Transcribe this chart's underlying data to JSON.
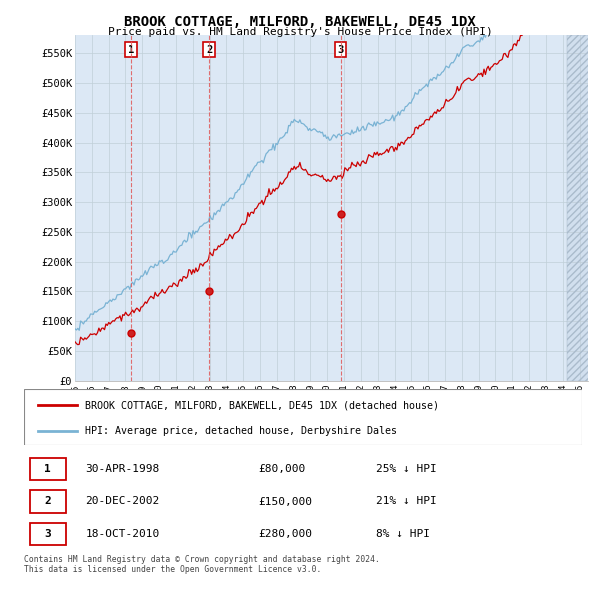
{
  "title": "BROOK COTTAGE, MILFORD, BAKEWELL, DE45 1DX",
  "subtitle": "Price paid vs. HM Land Registry's House Price Index (HPI)",
  "ylabel_ticks": [
    "£0",
    "£50K",
    "£100K",
    "£150K",
    "£200K",
    "£250K",
    "£300K",
    "£350K",
    "£400K",
    "£450K",
    "£500K",
    "£550K"
  ],
  "ytick_values": [
    0,
    50000,
    100000,
    150000,
    200000,
    250000,
    300000,
    350000,
    400000,
    450000,
    500000,
    550000
  ],
  "ylim": [
    0,
    580000
  ],
  "xlim_start": 1995.0,
  "xlim_end": 2025.5,
  "sale_dates": [
    1998.33,
    2002.97,
    2010.79
  ],
  "sale_prices": [
    80000,
    150000,
    280000
  ],
  "sale_labels": [
    "1",
    "2",
    "3"
  ],
  "hpi_color": "#7ab3d4",
  "price_color": "#cc0000",
  "vline_color": "#e06060",
  "chart_bg": "#dce8f5",
  "background_color": "#ffffff",
  "grid_color": "#c0cfd8",
  "legend_line1": "BROOK COTTAGE, MILFORD, BAKEWELL, DE45 1DX (detached house)",
  "legend_line2": "HPI: Average price, detached house, Derbyshire Dales",
  "table_entries": [
    {
      "label": "1",
      "date": "30-APR-1998",
      "price": "£80,000",
      "pct": "25% ↓ HPI"
    },
    {
      "label": "2",
      "date": "20-DEC-2002",
      "price": "£150,000",
      "pct": "21% ↓ HPI"
    },
    {
      "label": "3",
      "date": "18-OCT-2010",
      "price": "£280,000",
      "pct": "8% ↓ HPI"
    }
  ],
  "footnote": "Contains HM Land Registry data © Crown copyright and database right 2024.\nThis data is licensed under the Open Government Licence v3.0."
}
